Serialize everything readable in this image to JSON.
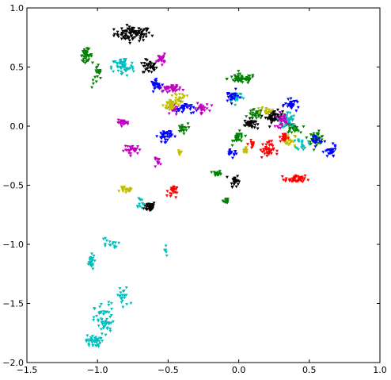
{
  "chart_data": {
    "type": "scatter",
    "title": "",
    "xlabel": "",
    "ylabel": "",
    "xlim": [
      -1.5,
      1.0
    ],
    "ylim": [
      -2.0,
      1.0
    ],
    "grid": false,
    "legend": "none",
    "x_ticks": [
      {
        "value": -1.5,
        "label": "−1.5"
      },
      {
        "value": -1.0,
        "label": "−1.0"
      },
      {
        "value": -0.5,
        "label": "−0.5"
      },
      {
        "value": 0.0,
        "label": "0.0"
      },
      {
        "value": 0.5,
        "label": "0.5"
      },
      {
        "value": 1.0,
        "label": "1.0"
      }
    ],
    "y_ticks": [
      {
        "value": 1.0,
        "label": "1.0"
      },
      {
        "value": 0.5,
        "label": "0.5"
      },
      {
        "value": 0.0,
        "label": "0.0"
      },
      {
        "value": -0.5,
        "label": "−0.5"
      },
      {
        "value": -1.0,
        "label": "−1.0"
      },
      {
        "value": -1.5,
        "label": "−1.5"
      },
      {
        "value": -2.0,
        "label": "−2.0"
      }
    ],
    "series": [
      {
        "color": "#000000",
        "clusters": [
          {
            "cx": -0.75,
            "cy": 0.78,
            "rx": 0.13,
            "ry": 0.06,
            "n": 90
          },
          {
            "cx": -0.63,
            "cy": 0.5,
            "rx": 0.05,
            "ry": 0.06,
            "n": 35
          },
          {
            "cx": -0.63,
            "cy": -0.68,
            "rx": 0.04,
            "ry": 0.04,
            "n": 40
          },
          {
            "cx": -0.03,
            "cy": -0.46,
            "rx": 0.03,
            "ry": 0.05,
            "n": 25
          },
          {
            "cx": 0.08,
            "cy": 0.02,
            "rx": 0.04,
            "ry": 0.04,
            "n": 40
          },
          {
            "cx": 0.25,
            "cy": 0.08,
            "rx": 0.06,
            "ry": 0.05,
            "n": 50
          }
        ]
      },
      {
        "color": "#008000",
        "clusters": [
          {
            "cx": -1.08,
            "cy": 0.6,
            "rx": 0.04,
            "ry": 0.05,
            "n": 40
          },
          {
            "cx": -1.0,
            "cy": 0.42,
            "rx": 0.04,
            "ry": 0.1,
            "n": 20
          },
          {
            "cx": 0.02,
            "cy": 0.4,
            "rx": 0.1,
            "ry": 0.04,
            "n": 60
          },
          {
            "cx": 0.12,
            "cy": 0.1,
            "rx": 0.05,
            "ry": 0.04,
            "n": 30
          },
          {
            "cx": 0.0,
            "cy": -0.1,
            "rx": 0.04,
            "ry": 0.05,
            "n": 30
          },
          {
            "cx": -0.15,
            "cy": -0.4,
            "rx": 0.03,
            "ry": 0.02,
            "n": 15
          },
          {
            "cx": -0.09,
            "cy": -0.63,
            "rx": 0.02,
            "ry": 0.02,
            "n": 15
          },
          {
            "cx": 0.55,
            "cy": -0.1,
            "rx": 0.06,
            "ry": 0.05,
            "n": 40
          },
          {
            "cx": 0.38,
            "cy": -0.02,
            "rx": 0.05,
            "ry": 0.04,
            "n": 30
          },
          {
            "cx": -0.4,
            "cy": -0.02,
            "rx": 0.04,
            "ry": 0.04,
            "n": 20
          }
        ]
      },
      {
        "color": "#00bfbf",
        "clusters": [
          {
            "cx": -0.82,
            "cy": 0.5,
            "rx": 0.08,
            "ry": 0.08,
            "n": 60
          },
          {
            "cx": -0.02,
            "cy": 0.25,
            "rx": 0.05,
            "ry": 0.05,
            "n": 25
          },
          {
            "cx": 0.35,
            "cy": 0.05,
            "rx": 0.05,
            "ry": 0.07,
            "n": 40
          },
          {
            "cx": 0.45,
            "cy": -0.15,
            "rx": 0.04,
            "ry": 0.05,
            "n": 20
          },
          {
            "cx": -0.7,
            "cy": -0.65,
            "rx": 0.03,
            "ry": 0.06,
            "n": 12
          },
          {
            "cx": -1.05,
            "cy": -1.15,
            "rx": 0.03,
            "ry": 0.06,
            "n": 25
          },
          {
            "cx": -0.92,
            "cy": -1.0,
            "rx": 0.06,
            "ry": 0.06,
            "n": 15
          },
          {
            "cx": -0.52,
            "cy": -1.05,
            "rx": 0.02,
            "ry": 0.05,
            "n": 6
          },
          {
            "cx": -1.03,
            "cy": -1.82,
            "rx": 0.05,
            "ry": 0.05,
            "n": 40
          },
          {
            "cx": -0.95,
            "cy": -1.65,
            "rx": 0.07,
            "ry": 0.15,
            "n": 60
          },
          {
            "cx": -0.82,
            "cy": -1.45,
            "rx": 0.05,
            "ry": 0.1,
            "n": 20
          }
        ]
      },
      {
        "color": "#bf00bf",
        "clusters": [
          {
            "cx": -0.55,
            "cy": 0.57,
            "rx": 0.03,
            "ry": 0.04,
            "n": 25
          },
          {
            "cx": -0.48,
            "cy": 0.32,
            "rx": 0.08,
            "ry": 0.03,
            "n": 40
          },
          {
            "cx": -0.27,
            "cy": 0.15,
            "rx": 0.06,
            "ry": 0.04,
            "n": 30
          },
          {
            "cx": -0.82,
            "cy": 0.03,
            "rx": 0.04,
            "ry": 0.02,
            "n": 25
          },
          {
            "cx": -0.75,
            "cy": -0.2,
            "rx": 0.06,
            "ry": 0.04,
            "n": 30
          },
          {
            "cx": -0.57,
            "cy": -0.3,
            "rx": 0.03,
            "ry": 0.03,
            "n": 12
          },
          {
            "cx": -0.45,
            "cy": 0.15,
            "rx": 0.03,
            "ry": 0.05,
            "n": 20
          },
          {
            "cx": 0.3,
            "cy": 0.05,
            "rx": 0.04,
            "ry": 0.06,
            "n": 30
          }
        ]
      },
      {
        "color": "#0000ff",
        "clusters": [
          {
            "cx": -0.58,
            "cy": 0.35,
            "rx": 0.04,
            "ry": 0.04,
            "n": 25
          },
          {
            "cx": -0.52,
            "cy": -0.08,
            "rx": 0.05,
            "ry": 0.05,
            "n": 40
          },
          {
            "cx": -0.38,
            "cy": 0.15,
            "rx": 0.06,
            "ry": 0.05,
            "n": 30
          },
          {
            "cx": -0.05,
            "cy": 0.25,
            "rx": 0.05,
            "ry": 0.05,
            "n": 25
          },
          {
            "cx": -0.05,
            "cy": -0.22,
            "rx": 0.04,
            "ry": 0.04,
            "n": 15
          },
          {
            "cx": 0.38,
            "cy": 0.18,
            "rx": 0.05,
            "ry": 0.04,
            "n": 30
          },
          {
            "cx": 0.65,
            "cy": -0.22,
            "rx": 0.04,
            "ry": 0.05,
            "n": 30
          },
          {
            "cx": 0.55,
            "cy": -0.12,
            "rx": 0.04,
            "ry": 0.05,
            "n": 20
          }
        ]
      },
      {
        "color": "#bfbf00",
        "clusters": [
          {
            "cx": -0.48,
            "cy": 0.18,
            "rx": 0.05,
            "ry": 0.06,
            "n": 35
          },
          {
            "cx": -0.8,
            "cy": -0.54,
            "rx": 0.04,
            "ry": 0.02,
            "n": 20
          },
          {
            "cx": -0.42,
            "cy": 0.24,
            "rx": 0.05,
            "ry": 0.04,
            "n": 20
          },
          {
            "cx": 0.05,
            "cy": -0.2,
            "rx": 0.02,
            "ry": 0.03,
            "n": 12
          },
          {
            "cx": 0.2,
            "cy": 0.13,
            "rx": 0.04,
            "ry": 0.03,
            "n": 20
          },
          {
            "cx": 0.35,
            "cy": -0.12,
            "rx": 0.05,
            "ry": 0.05,
            "n": 30
          },
          {
            "cx": -0.42,
            "cy": -0.22,
            "rx": 0.02,
            "ry": 0.02,
            "n": 8
          }
        ]
      },
      {
        "color": "#ff0000",
        "clusters": [
          {
            "cx": -0.47,
            "cy": -0.55,
            "rx": 0.03,
            "ry": 0.05,
            "n": 25
          },
          {
            "cx": 0.2,
            "cy": -0.2,
            "rx": 0.05,
            "ry": 0.07,
            "n": 40
          },
          {
            "cx": 0.4,
            "cy": -0.45,
            "rx": 0.07,
            "ry": 0.03,
            "n": 45
          },
          {
            "cx": 0.32,
            "cy": -0.1,
            "rx": 0.03,
            "ry": 0.04,
            "n": 20
          },
          {
            "cx": 0.1,
            "cy": -0.15,
            "rx": 0.03,
            "ry": 0.03,
            "n": 12
          }
        ]
      }
    ]
  }
}
